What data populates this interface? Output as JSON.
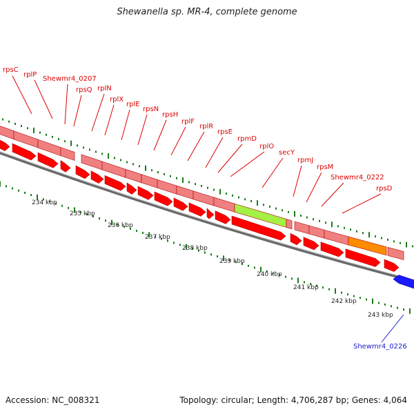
{
  "title": "Shewanella sp. MR-4, complete genome",
  "footer": {
    "accession": "Accession: NC_008321",
    "summary": "Topology: circular; Length: 4,706,287 bp; Genes: 4,064"
  },
  "colors": {
    "gene_red": "#ff0000",
    "gene_pink": "#f08080",
    "rplO_highlight": "#a4f044",
    "rpsD_highlight": "#ff8c00",
    "reverse_gene": "#1a1aff",
    "label_red": "#dd0000",
    "label_blue": "#1a1acc",
    "tick_green": "#1a7a1a"
  },
  "ticks": [
    "234 kbp",
    "235 kbp",
    "236 kbp",
    "237 kbp",
    "238 kbp",
    "239 kbp",
    "240 kbp",
    "241 kbp",
    "242 kbp",
    "243 kbp"
  ],
  "labels": [
    {
      "text": "rpsC",
      "color": "red"
    },
    {
      "text": "rplP",
      "color": "red"
    },
    {
      "text": "Shewmr4_0207",
      "color": "red"
    },
    {
      "text": "rpsQ",
      "color": "red"
    },
    {
      "text": "rplN",
      "color": "red"
    },
    {
      "text": "rplX",
      "color": "red"
    },
    {
      "text": "rplE",
      "color": "red"
    },
    {
      "text": "rpsN",
      "color": "red"
    },
    {
      "text": "rpsH",
      "color": "red"
    },
    {
      "text": "rplF",
      "color": "red"
    },
    {
      "text": "rplR",
      "color": "red"
    },
    {
      "text": "rpsE",
      "color": "red"
    },
    {
      "text": "rpmD",
      "color": "red"
    },
    {
      "text": "rplO",
      "color": "red"
    },
    {
      "text": "secY",
      "color": "red"
    },
    {
      "text": "rpmJ",
      "color": "red"
    },
    {
      "text": "rpsM",
      "color": "red"
    },
    {
      "text": "Shewmr4_0222",
      "color": "red"
    },
    {
      "text": "rpsD",
      "color": "red"
    },
    {
      "text": "Shewmr4_0226",
      "color": "blue"
    }
  ]
}
